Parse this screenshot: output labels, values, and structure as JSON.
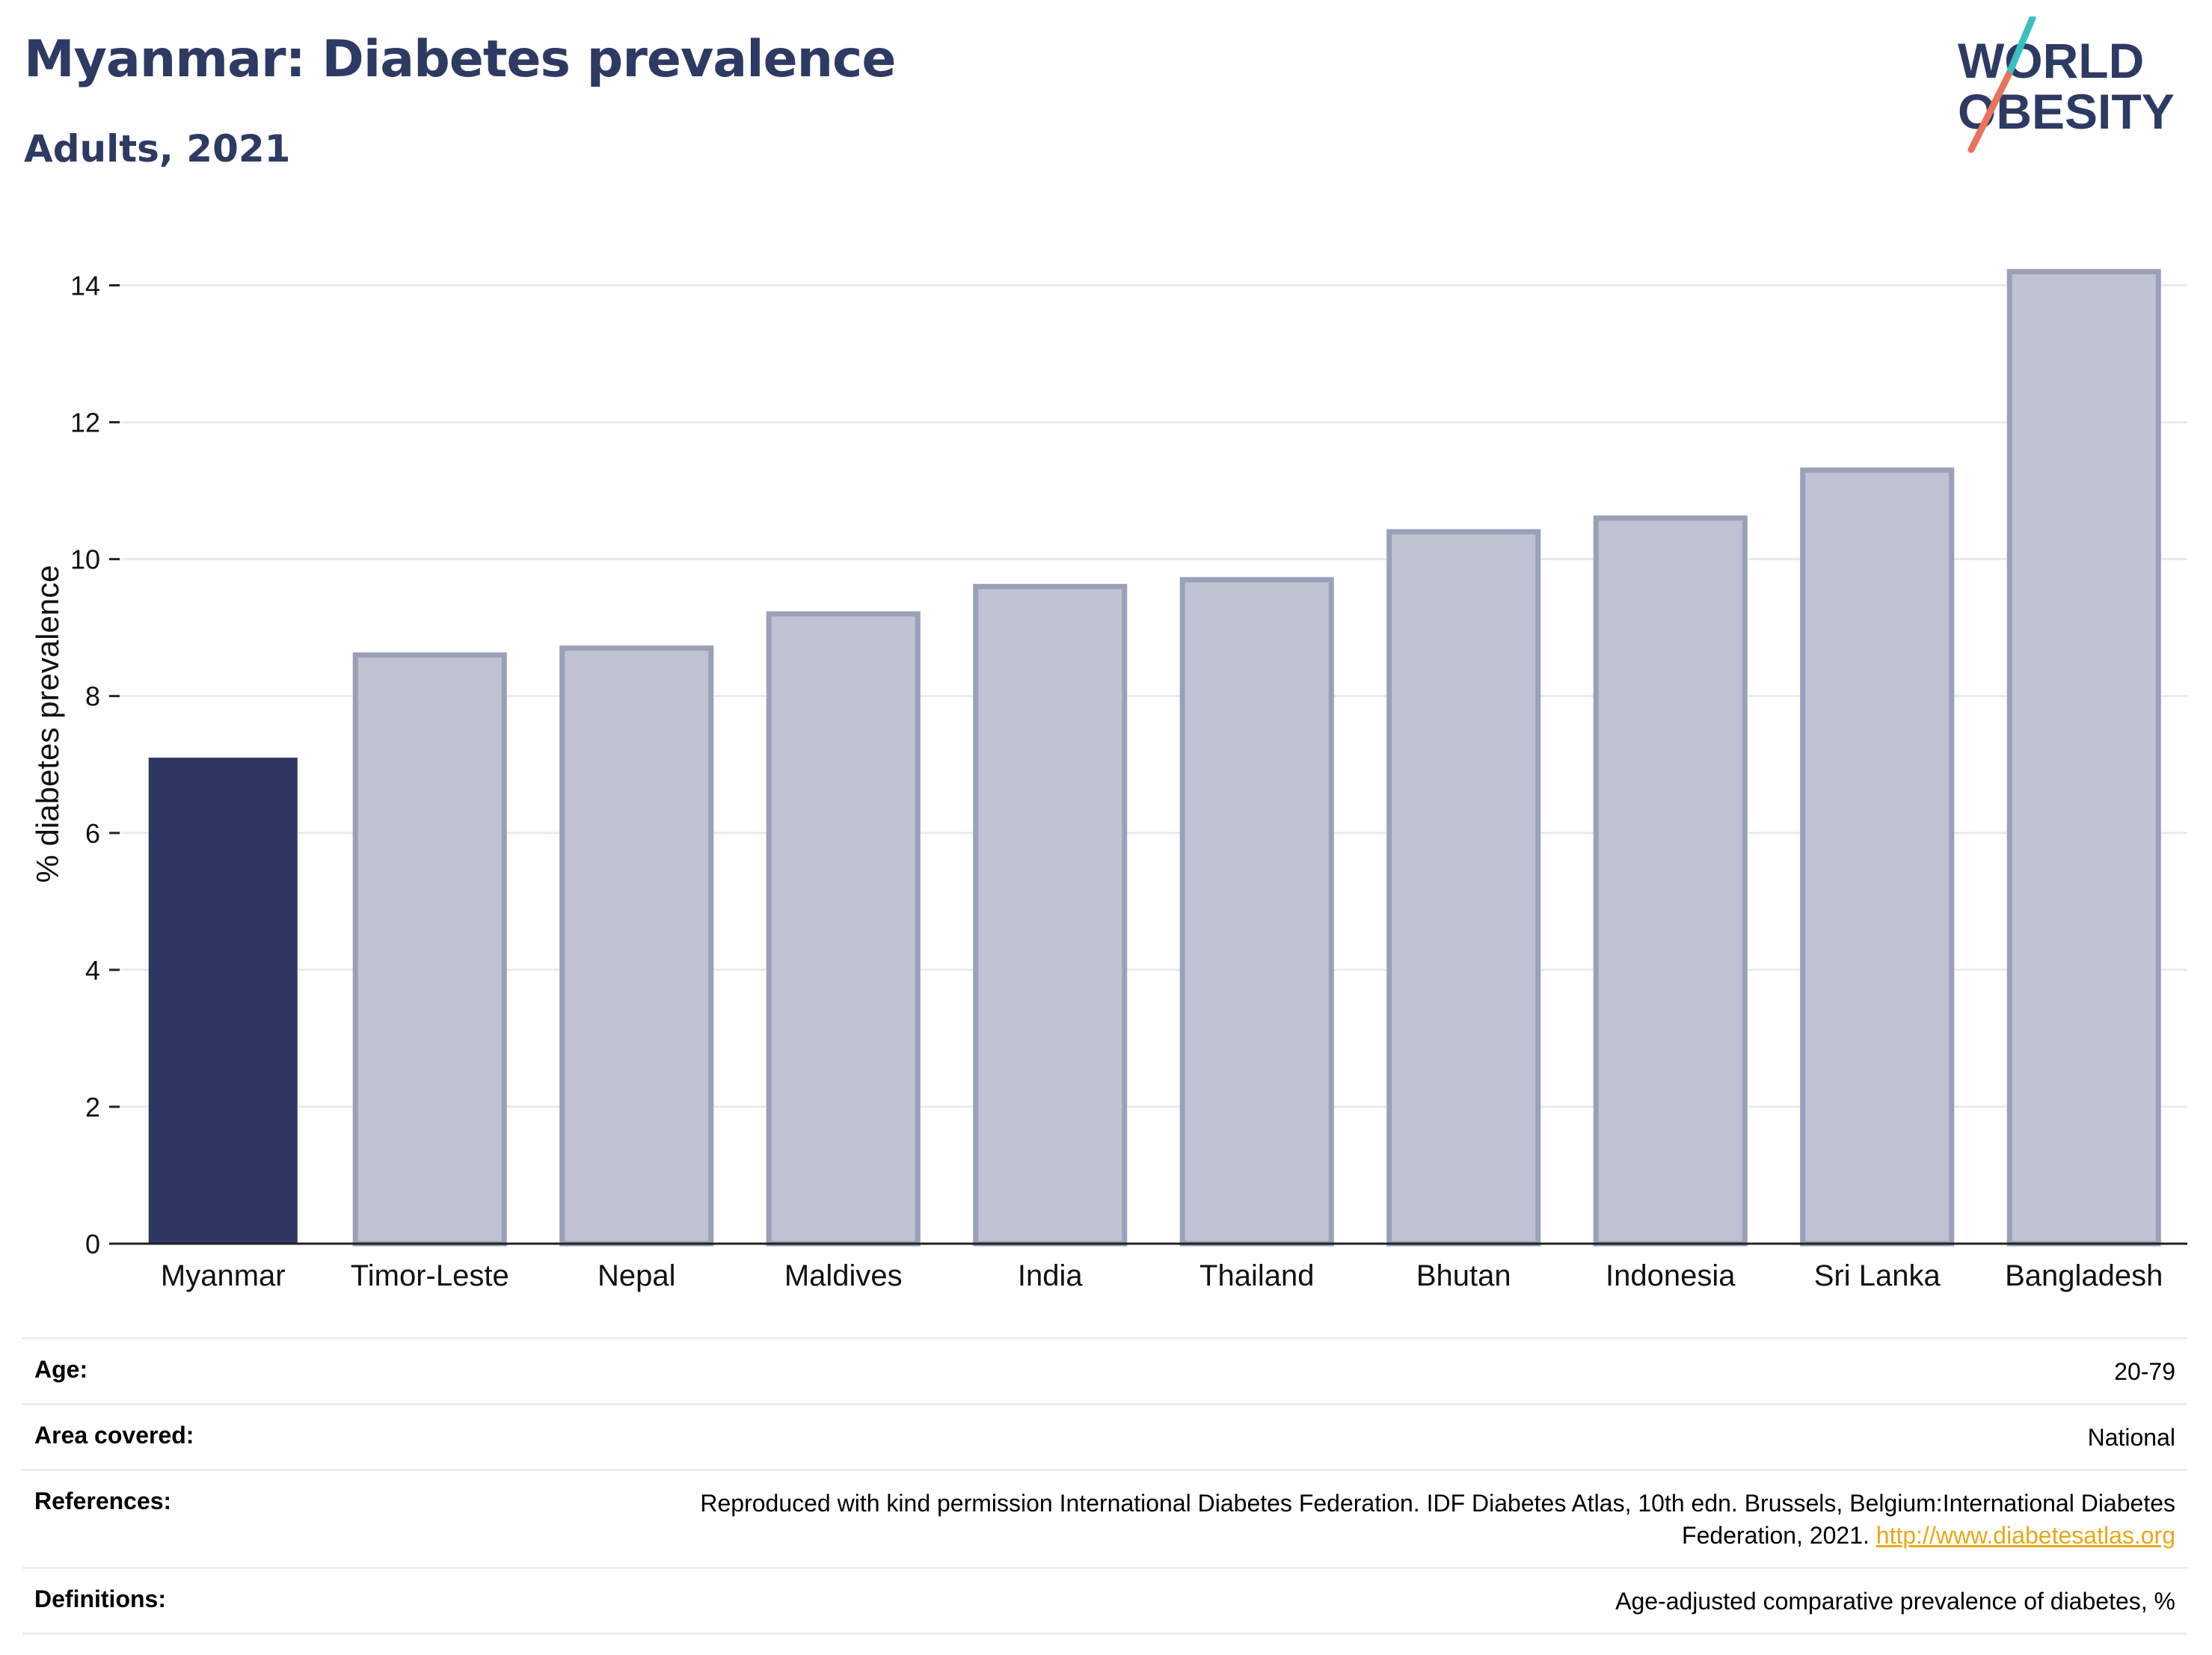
{
  "header": {
    "title": "Myanmar: Diabetes prevalence",
    "subtitle": "Adults, 2021"
  },
  "logo": {
    "line1": "WORLD",
    "line2": "OBESITY",
    "accent_teal": "#3bbfc0",
    "accent_coral": "#e9735b",
    "text_color": "#2d3a63"
  },
  "chart_data": {
    "type": "bar",
    "title": "Myanmar: Diabetes prevalence",
    "subtitle": "Adults, 2021",
    "xlabel": "",
    "ylabel": "% diabetes prevalence",
    "categories": [
      "Myanmar",
      "Timor-Leste",
      "Nepal",
      "Maldives",
      "India",
      "Thailand",
      "Bhutan",
      "Indonesia",
      "Sri Lanka",
      "Bangladesh"
    ],
    "values": [
      7.1,
      8.6,
      8.7,
      9.2,
      9.6,
      9.7,
      10.4,
      10.6,
      11.3,
      14.2
    ],
    "highlight": "Myanmar",
    "highlight_color": "#2d3762",
    "other_color": "#bfc3d1",
    "ylim": [
      0,
      15
    ],
    "yticks": [
      0,
      2,
      4,
      6,
      8,
      10,
      12,
      14
    ],
    "grid": true
  },
  "meta": {
    "rows": [
      {
        "key": "Age:",
        "value": "20-79"
      },
      {
        "key": "Area covered:",
        "value": "National"
      },
      {
        "key": "References:",
        "value": "Reproduced with kind permission International Diabetes Federation.  IDF Diabetes Atlas, 10th edn. Brussels, Belgium:International Diabetes Federation, 2021.",
        "link": "http://www.diabetesatlas.org"
      },
      {
        "key": "Definitions:",
        "value": "Age-adjusted comparative prevalence of diabetes, %"
      }
    ]
  }
}
